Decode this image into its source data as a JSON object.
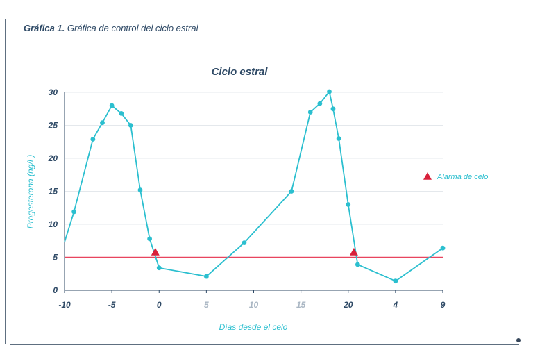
{
  "caption": {
    "bold": "Gráfica 1.",
    "text": " Gráfica de control del ciclo estral"
  },
  "chart_data": {
    "type": "line",
    "title": "Ciclo estral",
    "xlabel": "Días desde el celo",
    "ylabel": "Progesterona (ng/L)",
    "ylim": [
      0,
      30
    ],
    "y_ticks": [
      0,
      5,
      10,
      15,
      20,
      25,
      30
    ],
    "x_tick_labels": [
      "-10",
      "-5",
      "0",
      "5",
      "10",
      "15",
      "20",
      "4",
      "9"
    ],
    "x_tick_dim": [
      false,
      false,
      false,
      true,
      true,
      true,
      false,
      false,
      false
    ],
    "grid": "horizontal",
    "legend_position": "right",
    "series": [
      {
        "values": [
          {
            "x": -10,
            "y": 7.3
          },
          {
            "x": -9,
            "y": 11.9
          },
          {
            "x": -7,
            "y": 22.9
          },
          {
            "x": -6,
            "y": 25.4
          },
          {
            "x": -5,
            "y": 28
          },
          {
            "x": -4,
            "y": 26.8
          },
          {
            "x": -3,
            "y": 25
          },
          {
            "x": -2,
            "y": 15.2
          },
          {
            "x": -1,
            "y": 7.8
          },
          {
            "x": 0,
            "y": 3.4
          },
          {
            "x": 5,
            "y": 2.1
          },
          {
            "x": 9,
            "y": 7.2
          },
          {
            "x": 14,
            "y": 15
          },
          {
            "x": 16,
            "y": 27
          },
          {
            "x": 17,
            "y": 28.3
          },
          {
            "x": 18,
            "y": 30.1
          },
          {
            "x": 18.4,
            "y": 27.5
          },
          {
            "x": 19,
            "y": 23
          },
          {
            "x": 20,
            "y": 13
          },
          {
            "x": 21,
            "y": 3.9
          },
          {
            "x": 25,
            "y": 1.4
          },
          {
            "x": 30,
            "y": 6.4
          }
        ]
      },
      {
        "name": "Alarma de celo",
        "type": "scatter",
        "values": [
          {
            "x": -0.4,
            "y": 5.8
          },
          {
            "x": 20.6,
            "y": 5.8
          }
        ]
      }
    ],
    "threshold": {
      "y": 5
    },
    "colors": {
      "line": "#2bbfcf",
      "threshold": "#e8455f",
      "alarm": "#d8203a",
      "grid": "#e4e8ec",
      "axis": "#2f4a66"
    }
  }
}
